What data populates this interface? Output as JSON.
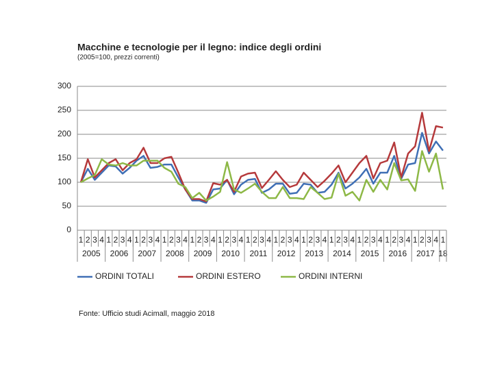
{
  "chart_data": {
    "type": "line",
    "title": "Macchine e tecnologie per il legno: indice degli ordini",
    "subtitle": "(2005=100, prezzi correnti)",
    "source": "Fonte: Ufficio studi Acimall, maggio 2018",
    "categories": [
      "1",
      "2",
      "3",
      "4",
      "1",
      "2",
      "3",
      "4",
      "1",
      "2",
      "3",
      "4",
      "1",
      "2",
      "3",
      "4",
      "1",
      "2",
      "3",
      "4",
      "1",
      "2",
      "3",
      "4",
      "1",
      "2",
      "3",
      "4",
      "1",
      "2",
      "3",
      "4",
      "1",
      "2",
      "3",
      "4",
      "1",
      "2",
      "3",
      "4",
      "1",
      "2",
      "3",
      "4",
      "1",
      "2",
      "3",
      "4",
      "1",
      "2",
      "3",
      "4",
      "1"
    ],
    "year_groups": [
      {
        "label": "2005",
        "quarters": 4
      },
      {
        "label": "2006",
        "quarters": 4
      },
      {
        "label": "2007",
        "quarters": 4
      },
      {
        "label": "2008",
        "quarters": 4
      },
      {
        "label": "2009",
        "quarters": 4
      },
      {
        "label": "2010",
        "quarters": 4
      },
      {
        "label": "2011",
        "quarters": 4
      },
      {
        "label": "2012",
        "quarters": 4
      },
      {
        "label": "2013",
        "quarters": 4
      },
      {
        "label": "2014",
        "quarters": 4
      },
      {
        "label": "2015",
        "quarters": 4
      },
      {
        "label": "2016",
        "quarters": 4
      },
      {
        "label": "2017",
        "quarters": 4
      },
      {
        "label": "18",
        "quarters": 1
      }
    ],
    "ylim": [
      0,
      300
    ],
    "yticks": [
      0,
      50,
      100,
      150,
      200,
      250,
      300
    ],
    "grid": true,
    "series": [
      {
        "name": "ORDINI TOTALI",
        "color": "#3f6fb5",
        "values": [
          100,
          128,
          105,
          120,
          135,
          133,
          118,
          130,
          145,
          155,
          130,
          132,
          137,
          137,
          110,
          85,
          62,
          62,
          57,
          85,
          87,
          105,
          75,
          95,
          105,
          107,
          78,
          85,
          97,
          97,
          76,
          78,
          97,
          95,
          78,
          80,
          95,
          120,
          87,
          97,
          110,
          128,
          97,
          120,
          120,
          155,
          107,
          137,
          140,
          203,
          160,
          185,
          166
        ]
      },
      {
        "name": "ORDINI ESTERO",
        "color": "#b5393b",
        "values": [
          100,
          148,
          110,
          125,
          140,
          148,
          125,
          140,
          148,
          172,
          140,
          140,
          150,
          153,
          120,
          85,
          65,
          65,
          60,
          98,
          95,
          105,
          80,
          112,
          118,
          120,
          88,
          105,
          123,
          105,
          90,
          95,
          120,
          105,
          90,
          103,
          118,
          135,
          100,
          120,
          140,
          155,
          108,
          140,
          145,
          183,
          110,
          160,
          175,
          245,
          165,
          217,
          214
        ]
      },
      {
        "name": "ORDINI INTERNI",
        "color": "#8db846",
        "values": [
          100,
          108,
          115,
          148,
          137,
          135,
          140,
          135,
          135,
          145,
          145,
          145,
          130,
          122,
          97,
          90,
          67,
          78,
          62,
          70,
          80,
          142,
          85,
          78,
          87,
          97,
          80,
          67,
          67,
          90,
          67,
          67,
          65,
          90,
          78,
          65,
          68,
          118,
          72,
          80,
          62,
          105,
          80,
          105,
          85,
          140,
          104,
          106,
          82,
          165,
          122,
          160,
          85
        ]
      }
    ]
  }
}
